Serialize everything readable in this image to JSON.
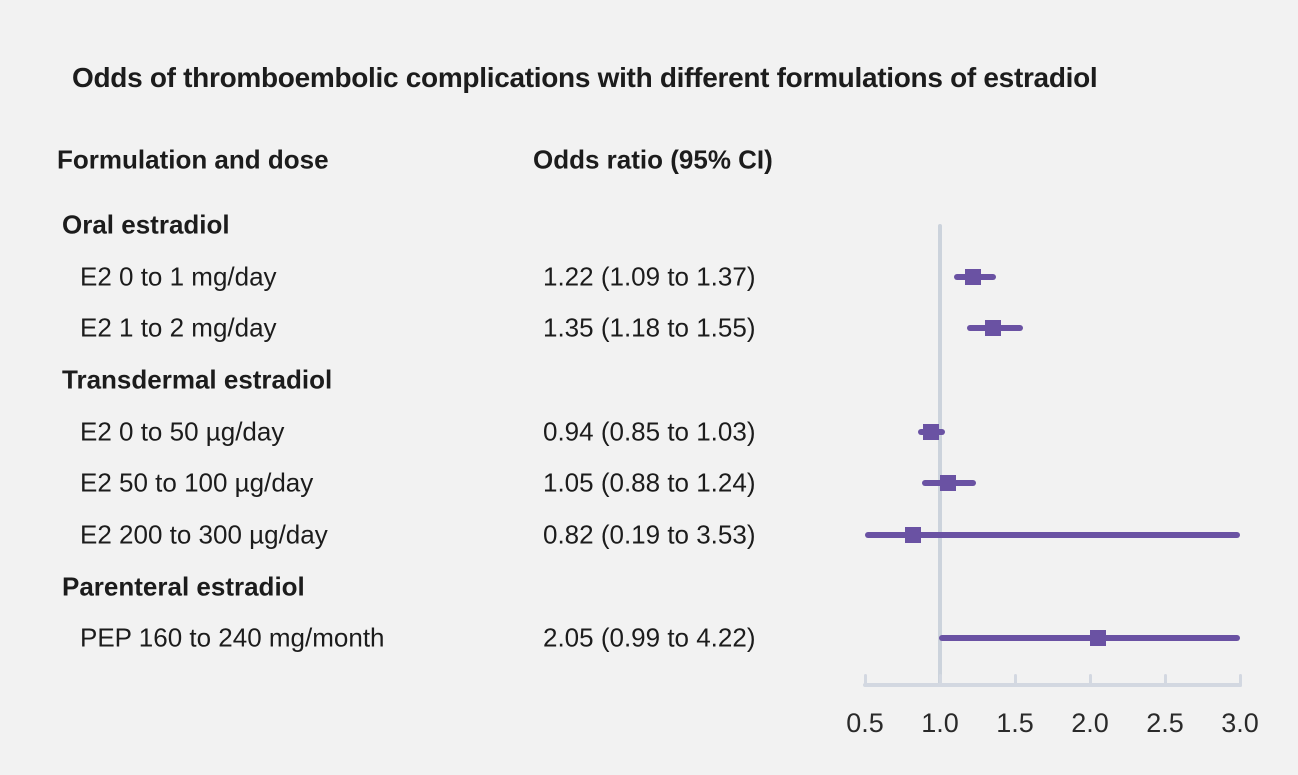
{
  "chart_data": {
    "type": "forest",
    "title": "Odds of thromboembolic complications with different formulations of estradiol",
    "column_headers": {
      "left": "Formulation and dose",
      "right": "Odds ratio (95% CI)"
    },
    "rows": [
      {
        "kind": "group",
        "label": "Oral estradiol"
      },
      {
        "kind": "item",
        "label": "E2 0 to 1 mg/day",
        "or_label": "1.22 (1.09 to 1.37)",
        "estimate": 1.22,
        "ci_low": 1.09,
        "ci_high": 1.37
      },
      {
        "kind": "item",
        "label": "E2 1 to 2 mg/day",
        "or_label": "1.35 (1.18 to 1.55)",
        "estimate": 1.35,
        "ci_low": 1.18,
        "ci_high": 1.55
      },
      {
        "kind": "group",
        "label": "Transdermal estradiol"
      },
      {
        "kind": "item",
        "label": "E2 0 to 50 µg/day",
        "or_label": "0.94 (0.85 to 1.03)",
        "estimate": 0.94,
        "ci_low": 0.85,
        "ci_high": 1.03
      },
      {
        "kind": "item",
        "label": "E2 50 to 100 µg/day",
        "or_label": "1.05 (0.88 to 1.24)",
        "estimate": 1.05,
        "ci_low": 0.88,
        "ci_high": 1.24
      },
      {
        "kind": "item",
        "label": "E2 200 to 300 µg/day",
        "or_label": "0.82 (0.19 to 3.53)",
        "estimate": 0.82,
        "ci_low": 0.19,
        "ci_high": 3.53
      },
      {
        "kind": "group",
        "label": "Parenteral estradiol"
      },
      {
        "kind": "item",
        "label": "PEP 160 to 240 mg/month",
        "or_label": "2.05 (0.99 to 4.22)",
        "estimate": 2.05,
        "ci_low": 0.99,
        "ci_high": 4.22
      }
    ],
    "x_axis": {
      "min": 0.5,
      "max": 3.0,
      "tick_labels": [
        "0.5",
        "1.0",
        "1.5",
        "2.0",
        "2.5",
        "3.0"
      ],
      "reference_value": 1.0
    },
    "legend": null,
    "grid": false
  },
  "colors": {
    "marker": "#6a52a3",
    "reference_line": "#ccd3dc",
    "axis_line": "#d3d8e1",
    "background": "#f2f2f2",
    "text": "#1c1c1c"
  }
}
